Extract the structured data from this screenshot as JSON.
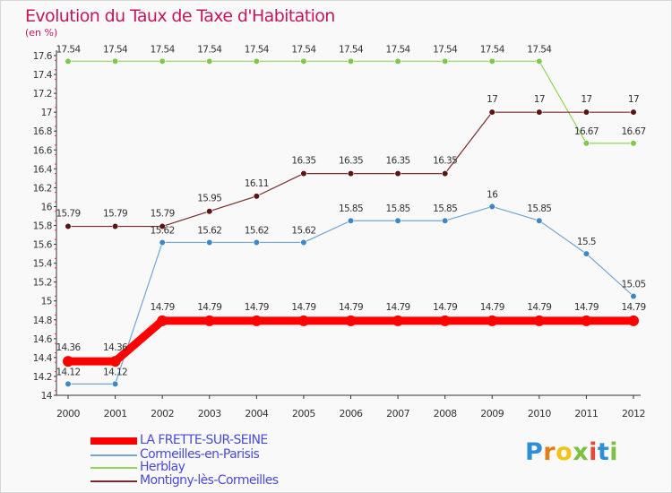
{
  "title": "Evolution du Taux de Taxe d'Habitation",
  "unit": "(en %)",
  "logo": {
    "text": "Proxiti",
    "letters": [
      "P",
      "r",
      "o",
      "x",
      "i",
      "t",
      "i"
    ]
  },
  "chart_data": {
    "type": "line",
    "title": "Evolution du Taux de Taxe d'Habitation",
    "ylabel": "(en %)",
    "ylim": [
      14,
      17.6
    ],
    "yticks": [
      "14",
      "14.2",
      "14.4",
      "14.6",
      "14.8",
      "15",
      "15.2",
      "15.4",
      "15.6",
      "15.8",
      "16",
      "16.2",
      "16.4",
      "16.6",
      "16.8",
      "17",
      "17.2",
      "17.4",
      "17.6"
    ],
    "ytick_values": [
      14,
      14.2,
      14.4,
      14.6,
      14.8,
      15,
      15.2,
      15.4,
      15.6,
      15.8,
      16,
      16.2,
      16.4,
      16.6,
      16.8,
      17,
      17.2,
      17.4,
      17.6
    ],
    "categories": [
      "2000",
      "2001",
      "2002",
      "2003",
      "2004",
      "2005",
      "2006",
      "2007",
      "2008",
      "2009",
      "2010",
      "2011",
      "2012"
    ],
    "grid": false,
    "legend_position": "bottom-left",
    "series": [
      {
        "name": "LA FRETTE-SUR-SEINE",
        "color": "#ff0000",
        "marker": "#ff0000",
        "width": 9,
        "values": [
          14.36,
          14.36,
          14.79,
          14.79,
          14.79,
          14.79,
          14.79,
          14.79,
          14.79,
          14.79,
          14.79,
          14.79,
          14.79
        ],
        "labels": [
          "14.36",
          "14.36",
          "14.79",
          "14.79",
          "14.79",
          "14.79",
          "14.79",
          "14.79",
          "14.79",
          "14.79",
          "14.79",
          "14.79",
          "14.79"
        ]
      },
      {
        "name": "Cormeilles-en-Parisis",
        "color": "#6fa6d6",
        "marker": "#3f86c8",
        "width": 1.2,
        "values": [
          14.12,
          14.12,
          15.62,
          15.62,
          15.62,
          15.62,
          15.85,
          15.85,
          15.85,
          16,
          15.85,
          15.5,
          15.05
        ],
        "labels": [
          "14.12",
          "14.12",
          "15.62",
          "15.62",
          "15.62",
          "15.62",
          "15.85",
          "15.85",
          "15.85",
          "16",
          "15.85",
          "15.5",
          "15.05"
        ]
      },
      {
        "name": "Herblay",
        "color": "#8fd65a",
        "marker": "#7cc94a",
        "width": 1.2,
        "values": [
          17.54,
          17.54,
          17.54,
          17.54,
          17.54,
          17.54,
          17.54,
          17.54,
          17.54,
          17.54,
          17.54,
          16.67,
          16.67
        ],
        "labels": [
          "17.54",
          "17.54",
          "17.54",
          "17.54",
          "17.54",
          "17.54",
          "17.54",
          "17.54",
          "17.54",
          "17.54",
          "17.54",
          "16.67",
          "16.67"
        ]
      },
      {
        "name": "Montigny-lès-Cormeilles",
        "color": "#7a2a2a",
        "marker": "#5a1414",
        "width": 1.2,
        "values": [
          15.79,
          15.79,
          15.79,
          15.95,
          16.11,
          16.35,
          16.35,
          16.35,
          16.35,
          17,
          17,
          17,
          17
        ],
        "labels": [
          "15.79",
          "15.79",
          "15.79",
          "15.95",
          "16.11",
          "16.35",
          "16.35",
          "16.35",
          "16.35",
          "17",
          "17",
          "17",
          "17"
        ]
      }
    ]
  }
}
